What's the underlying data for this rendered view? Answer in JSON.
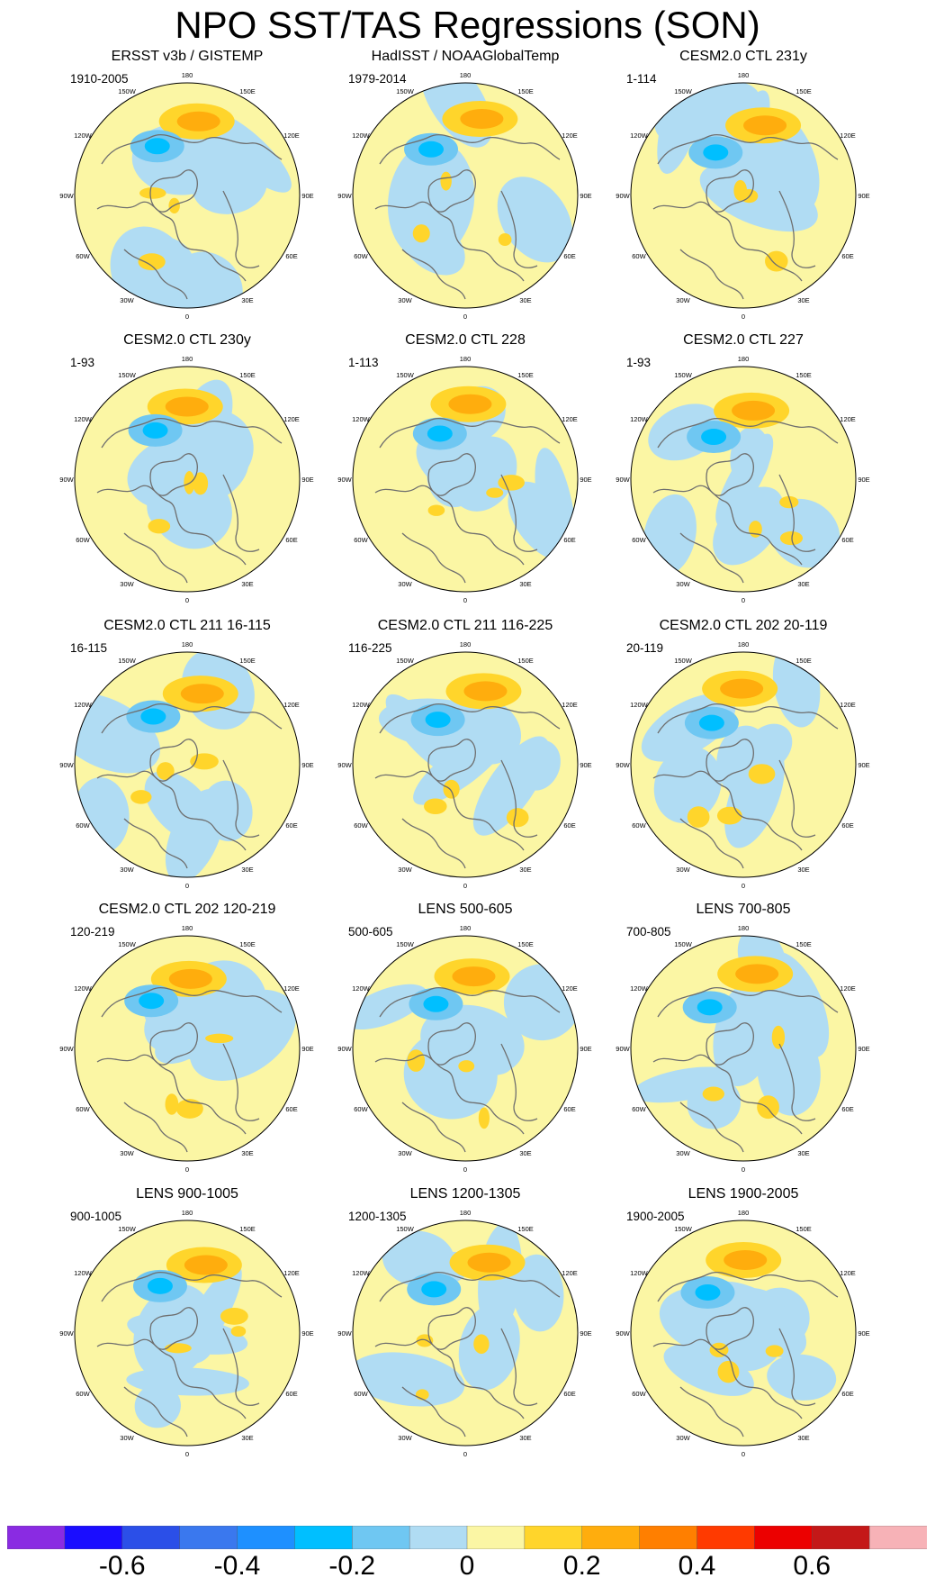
{
  "title": "NPO SST/TAS Regressions (SON)",
  "longitude_labels": [
    "180",
    "150E",
    "120E",
    "90E",
    "60E",
    "30E",
    "0",
    "30W",
    "60W",
    "90W",
    "120W",
    "150W"
  ],
  "panels": [
    {
      "title": "ERSST v3b / GISTEMP",
      "years": "1910-2005"
    },
    {
      "title": "HadISST / NOAAGlobalTemp",
      "years": "1979-2014"
    },
    {
      "title": "CESM2.0 CTL 231y",
      "years": "1-114"
    },
    {
      "title": "CESM2.0 CTL 230y",
      "years": "1-93"
    },
    {
      "title": "CESM2.0 CTL 228",
      "years": "1-113"
    },
    {
      "title": "CESM2.0 CTL 227",
      "years": "1-93"
    },
    {
      "title": "CESM2.0 CTL 211 16-115",
      "years": "16-115"
    },
    {
      "title": "CESM2.0 CTL 211 116-225",
      "years": "116-225"
    },
    {
      "title": "CESM2.0 CTL 202 20-119",
      "years": "20-119"
    },
    {
      "title": "CESM2.0 CTL 202 120-219",
      "years": "120-219"
    },
    {
      "title": "LENS 500-605",
      "years": "500-605"
    },
    {
      "title": "LENS 700-805",
      "years": "700-805"
    },
    {
      "title": "LENS 900-1005",
      "years": "900-1005"
    },
    {
      "title": "LENS 1200-1305",
      "years": "1200-1305"
    },
    {
      "title": "LENS 1900-2005",
      "years": "1900-2005"
    }
  ],
  "colorbar": {
    "colors": [
      "#8a2be2",
      "#1a0dff",
      "#2b4fe8",
      "#3a78ee",
      "#1e90ff",
      "#00bfff",
      "#6fc7f2",
      "#b0dcf3",
      "#fbf6a4",
      "#ffd52b",
      "#ffad0d",
      "#ff7f00",
      "#ff3a00",
      "#ec0000",
      "#c41818",
      "#f7b2b7"
    ],
    "labels": [
      "-0.6",
      "-0.4",
      "-0.2",
      "0",
      "0.2",
      "0.4",
      "0.6"
    ]
  }
}
